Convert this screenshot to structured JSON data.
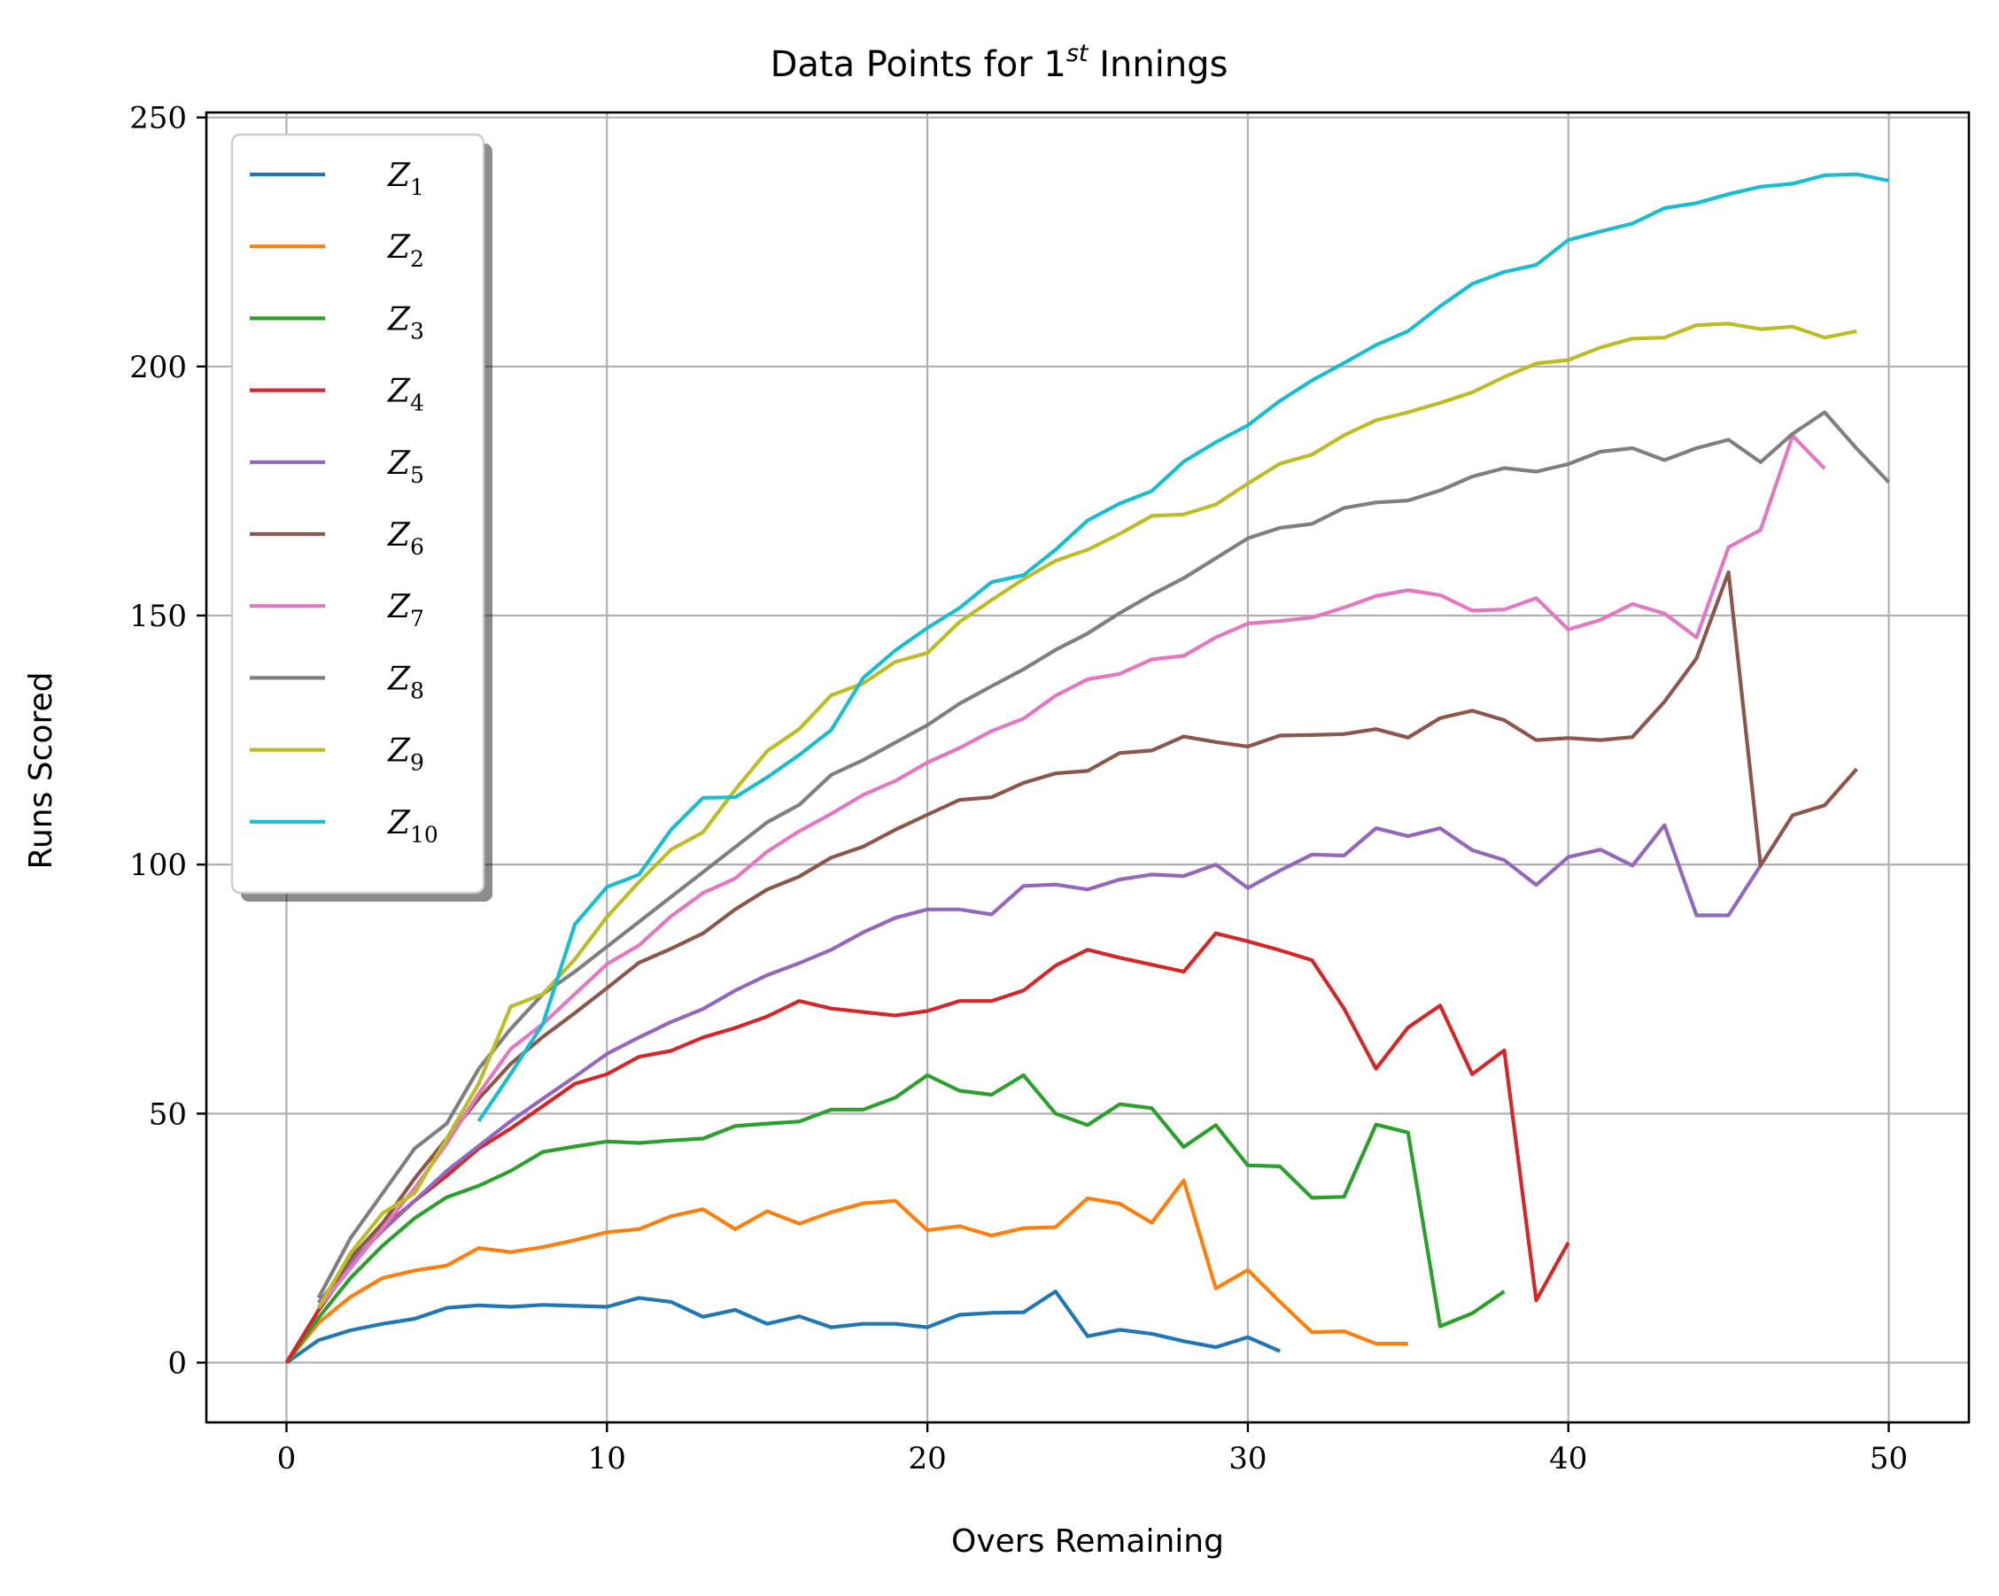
{
  "chart_data": {
    "type": "line",
    "title": "Data Points for 1st Innings",
    "title_parts": {
      "prefix": "Data Points for 1",
      "superscript": "st",
      "suffix": " Innings"
    },
    "xlabel": "Overs Remaining",
    "ylabel": "Runs Scored",
    "xlim": [
      -2.5,
      52.5
    ],
    "ylim": [
      -12,
      251
    ],
    "xticks": [
      0,
      10,
      20,
      30,
      40,
      50
    ],
    "yticks": [
      0,
      50,
      100,
      150,
      200,
      250
    ],
    "grid": true,
    "legend_position": "upper-left",
    "series": [
      {
        "name": "Z1",
        "label": "Z",
        "subscript": "1",
        "color": "#1f77b4",
        "x0": 0,
        "values": [
          0,
          4.5,
          6.5,
          7.8,
          8.8,
          11,
          11.5,
          11.2,
          11.6,
          11.4,
          11.2,
          13,
          12.2,
          9.2,
          10.6,
          7.8,
          9.3,
          7.1,
          7.8,
          7.8,
          7.1,
          9.6,
          10,
          10.1,
          14.3,
          5.3,
          6.6,
          5.8,
          4.3,
          3.1,
          5.1,
          2.3
        ]
      },
      {
        "name": "Z2",
        "label": "Z",
        "subscript": "2",
        "color": "#ff7f0e",
        "x0": 0,
        "values": [
          0,
          8,
          13.2,
          17,
          18.5,
          19.5,
          23,
          22.2,
          23.2,
          24.6,
          26.2,
          26.8,
          29.4,
          30.8,
          26.8,
          30.4,
          27.9,
          30.2,
          32,
          32.5,
          26.6,
          27.4,
          25.5,
          27,
          27.2,
          33,
          31.9,
          28.1,
          36.6,
          14.9,
          18.6,
          12.2,
          6.1,
          6.3,
          3.8,
          3.8
        ]
      },
      {
        "name": "Z3",
        "label": "Z",
        "subscript": "3",
        "color": "#2ca02c",
        "x0": 0,
        "values": [
          0,
          9,
          17,
          23.5,
          29,
          33.2,
          35.5,
          38.5,
          42.3,
          43.4,
          44.4,
          44.1,
          44.6,
          45,
          47.5,
          48,
          48.4,
          50.8,
          50.8,
          53.2,
          57.7,
          54.6,
          53.8,
          57.7,
          50,
          47.7,
          51.9,
          51.1,
          43.3,
          47.7,
          39.6,
          39.4,
          33.1,
          33.3,
          47.8,
          46.2,
          7.3,
          9.9,
          14.3
        ]
      },
      {
        "name": "Z4",
        "label": "Z",
        "subscript": "4",
        "color": "#d62728",
        "x0": 0,
        "values": [
          0,
          10.5,
          19.5,
          27,
          32.5,
          37.5,
          43,
          47,
          51.5,
          56,
          57.9,
          61.4,
          62.6,
          65.3,
          67.2,
          69.5,
          72.6,
          71.1,
          70.4,
          69.7,
          70.6,
          72.6,
          72.6,
          74.7,
          79.7,
          82.9,
          81.3,
          79.9,
          78.5,
          86.2,
          84.6,
          82.8,
          80.8,
          71.1,
          59,
          67.3,
          71.7,
          57.9,
          62.7,
          12.5,
          24.1
        ]
      },
      {
        "name": "Z5",
        "label": "Z",
        "subscript": "5",
        "color": "#9467bd",
        "x0": 1,
        "values": [
          12,
          20,
          26.5,
          32.5,
          38.5,
          43.5,
          48.5,
          53,
          57.4,
          62,
          65.3,
          68.4,
          71,
          74.7,
          77.8,
          80.2,
          82.9,
          86.4,
          89.3,
          91,
          91,
          90,
          95.7,
          96,
          95,
          97,
          98,
          97.7,
          100,
          95.3,
          98.8,
          102,
          101.8,
          107.3,
          105.7,
          107.3,
          102.9,
          100.9,
          95.9,
          101.5,
          103,
          99.8,
          107.9,
          89.8,
          89.8,
          99.8
        ]
      },
      {
        "name": "Z6",
        "label": "Z",
        "subscript": "6",
        "color": "#8c564b",
        "x0": 1,
        "values": [
          11,
          21,
          28,
          37,
          45,
          53,
          60,
          65.4,
          70.2,
          75.2,
          80.3,
          83.1,
          86.2,
          91,
          95,
          97.6,
          101.4,
          103.6,
          107,
          110,
          113,
          113.5,
          116.4,
          118.3,
          118.8,
          122.4,
          122.9,
          125.7,
          124.6,
          123.7,
          125.9,
          126,
          126.2,
          127.2,
          125.5,
          129.4,
          130.9,
          129,
          125,
          125.4,
          125,
          125.6,
          132.7,
          141.4,
          158.7,
          99.8,
          109.9,
          111.9,
          119.2
        ]
      },
      {
        "name": "Z7",
        "label": "Z",
        "subscript": "7",
        "color": "#e377c2",
        "x0": 1,
        "values": [
          11,
          19,
          27,
          35,
          44,
          54,
          63,
          68,
          74,
          80,
          83.8,
          89.6,
          94.3,
          97.2,
          102.6,
          106.7,
          110.2,
          114,
          116.8,
          120.5,
          123.4,
          126.8,
          129.3,
          133.9,
          137.2,
          138.3,
          141.2,
          141.9,
          145.6,
          148.4,
          148.9,
          149.6,
          151.6,
          153.9,
          155.1,
          154.1,
          151,
          151.2,
          153.5,
          147.2,
          149.1,
          152.3,
          150.4,
          145.6,
          163.7,
          167.2,
          186.1,
          179.5
        ]
      },
      {
        "name": "Z8",
        "label": "Z",
        "subscript": "8",
        "color": "#7f7f7f",
        "x0": 1,
        "values": [
          13,
          25,
          34,
          43,
          48,
          59,
          67,
          74,
          78.5,
          83.5,
          88.5,
          93.5,
          98.5,
          103.5,
          108.5,
          112,
          118,
          121,
          124.5,
          128,
          132.3,
          135.8,
          139.2,
          143.1,
          146.4,
          150.5,
          154.2,
          157.5,
          161.5,
          165.5,
          167.6,
          168.4,
          171.6,
          172.7,
          173.1,
          175.1,
          177.9,
          179.6,
          178.9,
          180.4,
          182.9,
          183.6,
          181.2,
          183.6,
          185.3,
          180.8,
          186.5,
          190.8,
          183.5,
          176.8
        ]
      },
      {
        "name": "Z9",
        "label": "Z",
        "subscript": "9",
        "color": "#bcbd22",
        "x0": 1,
        "values": [
          11,
          22,
          30,
          34,
          45,
          56,
          71.5,
          74,
          81,
          89.5,
          96.5,
          103,
          106.5,
          115,
          122.8,
          127.2,
          134,
          136.4,
          140.7,
          142.5,
          148.7,
          153.1,
          157.3,
          161,
          163.2,
          166.4,
          170,
          170.3,
          172.3,
          176.5,
          180.5,
          182.3,
          186.2,
          189.2,
          190.8,
          192.7,
          194.8,
          197.9,
          200.6,
          201.3,
          203.8,
          205.6,
          205.8,
          208.3,
          208.6,
          207.5,
          208,
          205.8,
          207.1
        ]
      },
      {
        "name": "Z10",
        "label": "Z",
        "subscript": "10",
        "color": "#17becf",
        "x0": 6,
        "values": [
          48.5,
          58,
          68,
          88,
          95.5,
          98,
          107,
          113.4,
          113.5,
          117.5,
          122,
          127,
          137.5,
          143,
          147.5,
          151.5,
          156.7,
          158.1,
          163.2,
          169.1,
          172.5,
          175,
          180.9,
          184.8,
          188.2,
          193.1,
          197.2,
          200.7,
          204.3,
          207.1,
          212.1,
          216.6,
          219,
          220.4,
          225.4,
          227.1,
          228.7,
          231.8,
          232.8,
          234.6,
          236.1,
          236.7,
          238.4,
          238.6,
          237.3
        ]
      }
    ]
  }
}
